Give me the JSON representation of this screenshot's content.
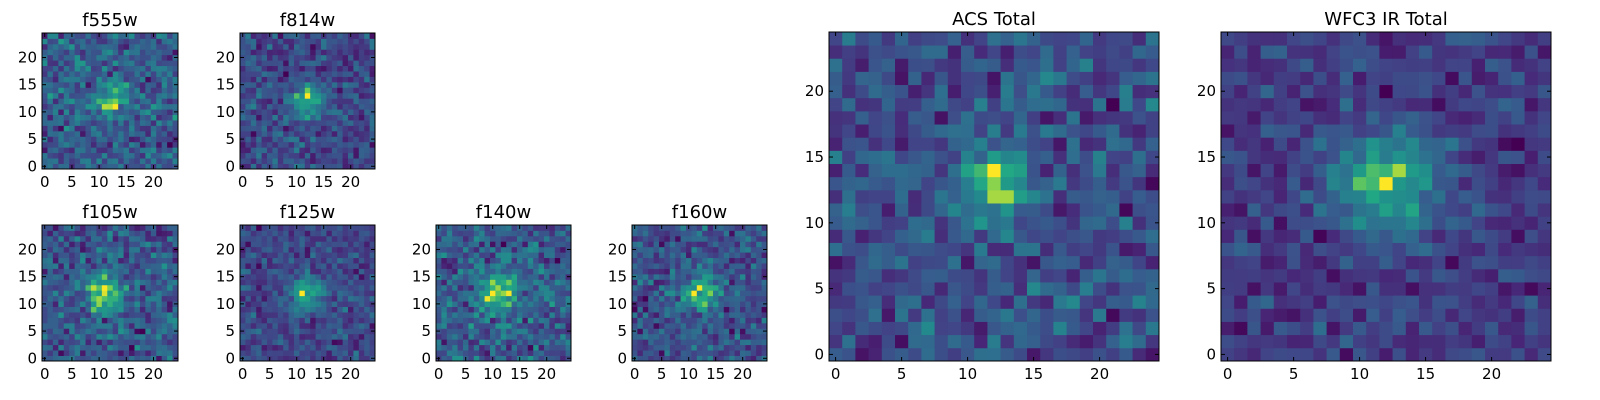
{
  "chart_data": [
    {
      "type": "heatmap",
      "title": "f555w",
      "xticks": [
        "0",
        "5",
        "10",
        "15",
        "20"
      ],
      "yticks": [
        "0",
        "5",
        "10",
        "15",
        "20"
      ],
      "xlim": [
        -0.5,
        24.5
      ],
      "ylim": [
        -0.5,
        24.5
      ],
      "grid": false,
      "colormap": "viridis",
      "peak": [
        12,
        12
      ],
      "peak_width": 2.0,
      "noise_level": 0.5,
      "seed": 11
    },
    {
      "type": "heatmap",
      "title": "f814w",
      "xticks": [
        "0",
        "5",
        "10",
        "15",
        "20"
      ],
      "yticks": [
        "0",
        "5",
        "10",
        "15",
        "20"
      ],
      "xlim": [
        -0.5,
        24.5
      ],
      "ylim": [
        -0.5,
        24.5
      ],
      "grid": false,
      "colormap": "viridis",
      "peak": [
        12,
        12
      ],
      "peak_width": 2.0,
      "noise_level": 0.42,
      "seed": 23
    },
    {
      "type": "heatmap",
      "title": "f105w",
      "xticks": [
        "0",
        "5",
        "10",
        "15",
        "20"
      ],
      "yticks": [
        "0",
        "5",
        "10",
        "15",
        "20"
      ],
      "xlim": [
        -0.5,
        24.5
      ],
      "ylim": [
        -0.5,
        24.5
      ],
      "grid": false,
      "colormap": "viridis",
      "peak": [
        11,
        12
      ],
      "peak_width": 2.4,
      "noise_level": 0.45,
      "seed": 37
    },
    {
      "type": "heatmap",
      "title": "f125w",
      "xticks": [
        "0",
        "5",
        "10",
        "15",
        "20"
      ],
      "yticks": [
        "0",
        "5",
        "10",
        "15",
        "20"
      ],
      "xlim": [
        -0.5,
        24.5
      ],
      "ylim": [
        -0.5,
        24.5
      ],
      "grid": false,
      "colormap": "viridis",
      "peak": [
        12,
        12
      ],
      "peak_width": 2.2,
      "noise_level": 0.38,
      "seed": 41
    },
    {
      "type": "heatmap",
      "title": "f140w",
      "xticks": [
        "0",
        "5",
        "10",
        "15",
        "20"
      ],
      "yticks": [
        "0",
        "5",
        "10",
        "15",
        "20"
      ],
      "xlim": [
        -0.5,
        24.5
      ],
      "ylim": [
        -0.5,
        24.5
      ],
      "grid": false,
      "colormap": "viridis",
      "peak": [
        11,
        12
      ],
      "peak_width": 2.6,
      "noise_level": 0.5,
      "seed": 53
    },
    {
      "type": "heatmap",
      "title": "f160w",
      "xticks": [
        "0",
        "5",
        "10",
        "15",
        "20"
      ],
      "yticks": [
        "0",
        "5",
        "10",
        "15",
        "20"
      ],
      "xlim": [
        -0.5,
        24.5
      ],
      "ylim": [
        -0.5,
        24.5
      ],
      "grid": false,
      "colormap": "viridis",
      "peak": [
        12,
        12
      ],
      "peak_width": 2.6,
      "noise_level": 0.5,
      "seed": 67
    },
    {
      "type": "heatmap",
      "title": "ACS Total",
      "xticks": [
        "0",
        "5",
        "10",
        "15",
        "20"
      ],
      "yticks": [
        "0",
        "5",
        "10",
        "15",
        "20"
      ],
      "xlim": [
        -0.5,
        24.5
      ],
      "ylim": [
        -0.5,
        24.5
      ],
      "grid": false,
      "colormap": "viridis",
      "peak": [
        12,
        13
      ],
      "peak_width": 1.8,
      "noise_level": 0.4,
      "seed": 79
    },
    {
      "type": "heatmap",
      "title": "WFC3 IR Total",
      "xticks": [
        "0",
        "5",
        "10",
        "15",
        "20"
      ],
      "yticks": [
        "0",
        "5",
        "10",
        "15",
        "20"
      ],
      "xlim": [
        -0.5,
        24.5
      ],
      "ylim": [
        -0.5,
        24.5
      ],
      "grid": false,
      "colormap": "viridis",
      "peak": [
        12,
        13
      ],
      "peak_width": 2.8,
      "noise_level": 0.3,
      "seed": 97
    }
  ]
}
